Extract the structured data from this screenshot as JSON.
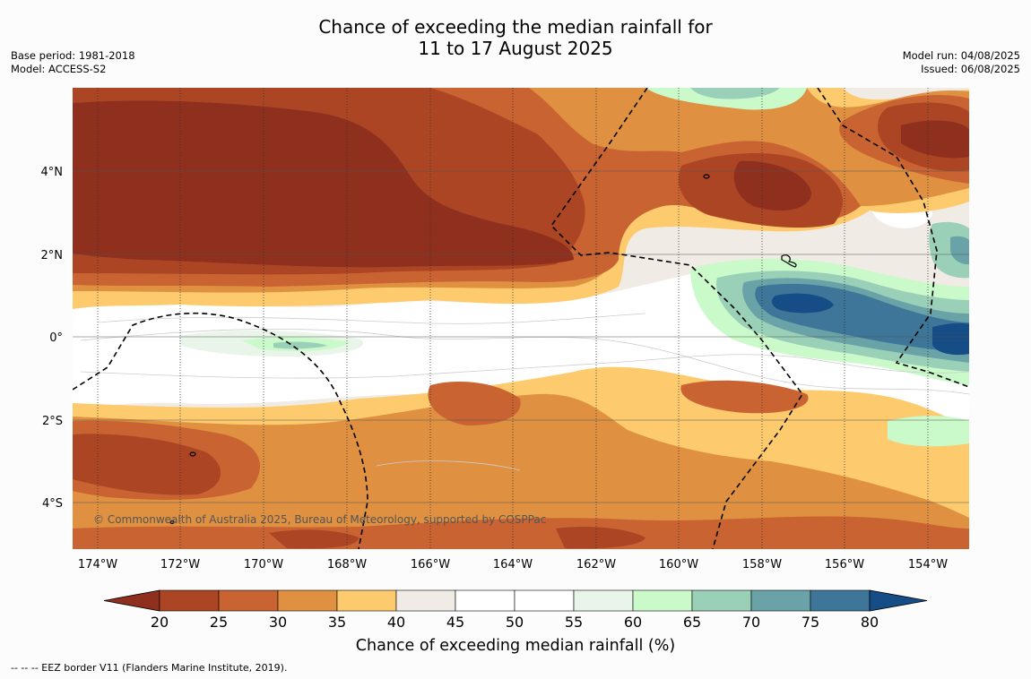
{
  "title_line1": "Chance of exceeding the median rainfall for",
  "title_line2": "11 to 17 August 2025",
  "meta_left": [
    "Base period: 1981-2018",
    "Model: ACCESS-S2"
  ],
  "meta_right": [
    "Model run: 04/08/2025",
    "Issued: 06/08/2025"
  ],
  "copyright": "© Commonwealth of Australia 2025, Bureau of Meteorology, supported by COSPPac",
  "footnote": "-- -- -- EEZ border V11 (Flanders Marine Institute, 2019).",
  "map": {
    "lon_range": [
      -174.6,
      -153.1
    ],
    "lat_range": [
      -5.0,
      6.0
    ],
    "lat_labels": [
      "4°N",
      "2°N",
      "0°",
      "2°S",
      "4°S"
    ],
    "lat_values": [
      4,
      2,
      0,
      -2,
      -4
    ],
    "lon_labels": [
      "174°W",
      "172°W",
      "170°W",
      "168°W",
      "166°W",
      "164°W",
      "162°W",
      "160°W",
      "158°W",
      "156°W",
      "154°W"
    ],
    "lon_values": [
      -174,
      -172,
      -170,
      -168,
      -166,
      -164,
      -162,
      -160,
      -158,
      -156,
      -154
    ]
  },
  "colorbar": {
    "label": "Chance of exceeding median rainfall (%)",
    "ticks": [
      "20",
      "25",
      "30",
      "35",
      "40",
      "45",
      "50",
      "55",
      "60",
      "65",
      "70",
      "75",
      "80"
    ],
    "colors": [
      "#8f2f1e",
      "#ac4524",
      "#c96331",
      "#df9040",
      "#fdcb6d",
      "#f0ebe4",
      "#ffffff",
      "#ffffff",
      "#e9f5e8",
      "#caf9ca",
      "#9bd0b8",
      "#6aa3a7",
      "#3d7699",
      "#164d86"
    ]
  }
}
